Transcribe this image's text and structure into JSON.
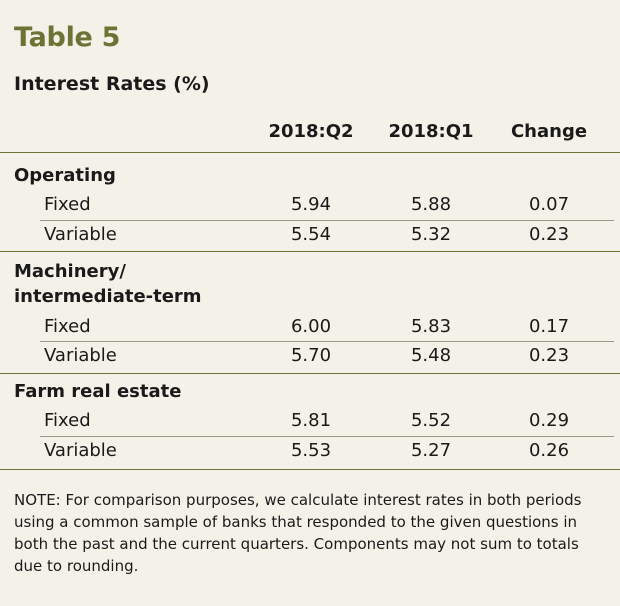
{
  "title": "Table 5",
  "subtitle": "Interest Rates (%)",
  "columns": [
    "2018:Q2",
    "2018:Q1",
    "Change"
  ],
  "groups": [
    {
      "label_lines": [
        "Operating"
      ],
      "rows": [
        {
          "label": "Fixed",
          "values": [
            "5.94",
            "5.88",
            "0.07"
          ]
        },
        {
          "label": "Variable",
          "values": [
            "5.54",
            "5.32",
            "0.23"
          ]
        }
      ]
    },
    {
      "label_lines": [
        "Machinery/",
        "intermediate-term"
      ],
      "rows": [
        {
          "label": "Fixed",
          "values": [
            "6.00",
            "5.83",
            "0.17"
          ]
        },
        {
          "label": "Variable",
          "values": [
            "5.70",
            "5.48",
            "0.23"
          ]
        }
      ]
    },
    {
      "label_lines": [
        "Farm real estate"
      ],
      "rows": [
        {
          "label": "Fixed",
          "values": [
            "5.81",
            "5.52",
            "0.29"
          ]
        },
        {
          "label": "Variable",
          "values": [
            "5.53",
            "5.27",
            "0.26"
          ]
        }
      ]
    }
  ],
  "note": "NOTE: For comparison purposes, we calculate interest rates in both periods using a common sample of banks that responded to the given questions in both the past and the current quarters. Components may not sum to totals due to rounding.",
  "colors": {
    "accent": "#6b7335",
    "background": "#f4f2e8"
  }
}
